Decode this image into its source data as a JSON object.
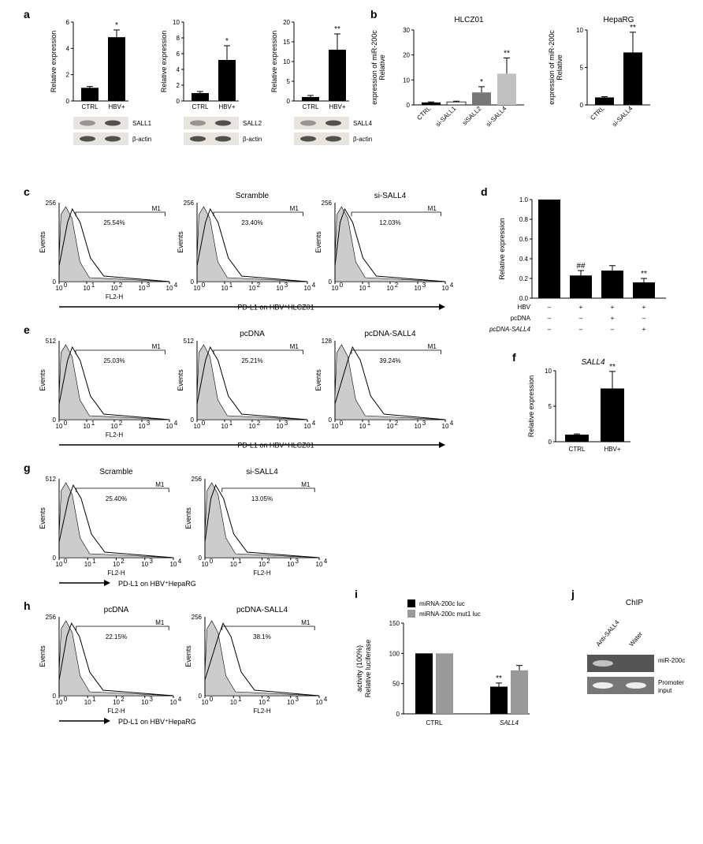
{
  "panelA": {
    "label": "a",
    "ylabel": "Relative expression",
    "charts": [
      {
        "ymax": 6,
        "ytick": 2,
        "values": [
          1.0,
          4.85
        ],
        "errs": [
          0.1,
          0.55
        ],
        "sigs": [
          "",
          "*"
        ],
        "xlabels": [
          "CTRL",
          "HBV+"
        ],
        "wb_labels": [
          "SALL1",
          "β-actin"
        ]
      },
      {
        "ymax": 10,
        "ytick": 2,
        "values": [
          1.0,
          5.2
        ],
        "errs": [
          0.2,
          1.8
        ],
        "sigs": [
          "",
          "*"
        ],
        "xlabels": [
          "CTRL",
          "HBV+"
        ],
        "wb_labels": [
          "SALL2",
          "β-actin"
        ]
      },
      {
        "ymax": 20,
        "ytick": 5,
        "values": [
          1.0,
          13.0
        ],
        "errs": [
          0.4,
          4.0
        ],
        "sigs": [
          "",
          "**"
        ],
        "xlabels": [
          "CTRL",
          "HBV+"
        ],
        "wb_labels": [
          "SALL4",
          "β-actin"
        ]
      }
    ]
  },
  "panelB": {
    "label": "b",
    "ylabel": "Relative\nexpression of miR-200c",
    "chart1": {
      "title": "HLCZ01",
      "ymax": 30,
      "ytick": 10,
      "bars": [
        {
          "label": "CTRL",
          "val": 1.0,
          "err": 0.2,
          "fill": "bar",
          "sig": ""
        },
        {
          "label": "si-SALL1",
          "val": 1.2,
          "err": 0.3,
          "fill": "bar-white",
          "sig": ""
        },
        {
          "label": "siSALL2",
          "val": 5.0,
          "err": 2.3,
          "fill": "bar-gray",
          "sig": "*"
        },
        {
          "label": "si-SALL4",
          "val": 12.5,
          "err": 6.3,
          "fill": "bar-lightgray",
          "sig": "**"
        }
      ]
    },
    "chart2": {
      "title": "HepaRG",
      "ymax": 10,
      "ytick": 5,
      "bars": [
        {
          "label": "CTRL",
          "val": 1.0,
          "err": 0.1,
          "fill": "bar",
          "sig": ""
        },
        {
          "label": "si-SALL4",
          "val": 7.0,
          "err": 2.7,
          "fill": "bar",
          "sig": "**"
        }
      ]
    }
  },
  "panelC": {
    "label": "c",
    "plots": [
      {
        "title": "",
        "pct": "25.54%",
        "ymax": 256
      },
      {
        "title": "Scramble",
        "pct": "23.40%",
        "ymax": 256
      },
      {
        "title": "si-SALL4",
        "pct": "12.03%",
        "ymax": 256
      }
    ],
    "arrow_label": "PD-L1 on HBV⁺HLCZ01",
    "gate_label": "M1",
    "ylabel": "Events",
    "xlabel": "FL2-H"
  },
  "panelD": {
    "label": "d",
    "ylabel": "Relative expression",
    "ymax": 1.0,
    "ytick": 0.2,
    "bars": [
      {
        "val": 1.0,
        "err": 0.0,
        "sig": ""
      },
      {
        "val": 0.23,
        "err": 0.05,
        "sig": "##"
      },
      {
        "val": 0.28,
        "err": 0.05,
        "sig": ""
      },
      {
        "val": 0.16,
        "err": 0.04,
        "sig": "**"
      }
    ],
    "rows": [
      {
        "label": "HBV",
        "vals": [
          "–",
          "+",
          "+",
          "+"
        ]
      },
      {
        "label": "pcDNA",
        "vals": [
          "–",
          "–",
          "+",
          "–"
        ]
      },
      {
        "label": "pcDNA-SALL4",
        "vals": [
          "–",
          "–",
          "–",
          "+"
        ]
      }
    ]
  },
  "panelE": {
    "label": "e",
    "plots": [
      {
        "title": "",
        "pct": "25.03%",
        "ymax": 512
      },
      {
        "title": "pcDNA",
        "pct": "25.21%",
        "ymax": 512
      },
      {
        "title": "pcDNA-SALL4",
        "pct": "39.24%",
        "ymax": 128
      }
    ],
    "arrow_label": "PD-L1 on HBV⁺HLCZ01",
    "gate_label": "M1",
    "ylabel": "Events",
    "xlabel": "FL2-H"
  },
  "panelF": {
    "label": "f",
    "title": "SALL4",
    "ylabel": "Relative expression",
    "ymax": 10,
    "ytick": 5,
    "bars": [
      {
        "label": "CTRL",
        "val": 1.0,
        "err": 0.1,
        "sig": ""
      },
      {
        "label": "HBV+",
        "val": 7.5,
        "err": 2.4,
        "sig": "**"
      }
    ]
  },
  "panelG": {
    "label": "g",
    "plots": [
      {
        "title": "Scramble",
        "pct": "25.40%",
        "ymax": 512
      },
      {
        "title": "si-SALL4",
        "pct": "13.05%",
        "ymax": 256
      }
    ],
    "arrow_label": "PD-L1 on HBV⁺HepaRG",
    "gate_label": "M1",
    "ylabel": "Events",
    "xlabel": "FL2-H"
  },
  "panelH": {
    "label": "h",
    "plots": [
      {
        "title": "pcDNA",
        "pct": "22.15%",
        "ymax": 256
      },
      {
        "title": "pcDNA-SALL4",
        "pct": "38.1%",
        "ymax": 256
      }
    ],
    "arrow_label": "PD-L1 on HBV⁺HepaRG",
    "gate_label": "M1",
    "ylabel": "Events",
    "xlabel": "FL2-H"
  },
  "panelI": {
    "label": "i",
    "ylabel": "Relative luciferase\nactivity (100%)",
    "ymax": 150,
    "ytick": 50,
    "legend": [
      "miRNA-200c luc",
      "miRNA-200c mut1 luc"
    ],
    "groups": [
      "CTRL",
      "SALL4"
    ],
    "series": [
      {
        "vals": [
          100,
          45
        ],
        "errs": [
          0,
          6
        ],
        "sigs": [
          "",
          "**"
        ],
        "fill": "bar"
      },
      {
        "vals": [
          100,
          72
        ],
        "errs": [
          0,
          8
        ],
        "sigs": [
          "",
          ""
        ],
        "fill": "bar-light"
      }
    ]
  },
  "panelJ": {
    "label": "j",
    "title": "ChIP",
    "cols": [
      "Anti-SALL4",
      "Water"
    ],
    "rows": [
      "miR-200c",
      "Promoter\ninput"
    ]
  }
}
